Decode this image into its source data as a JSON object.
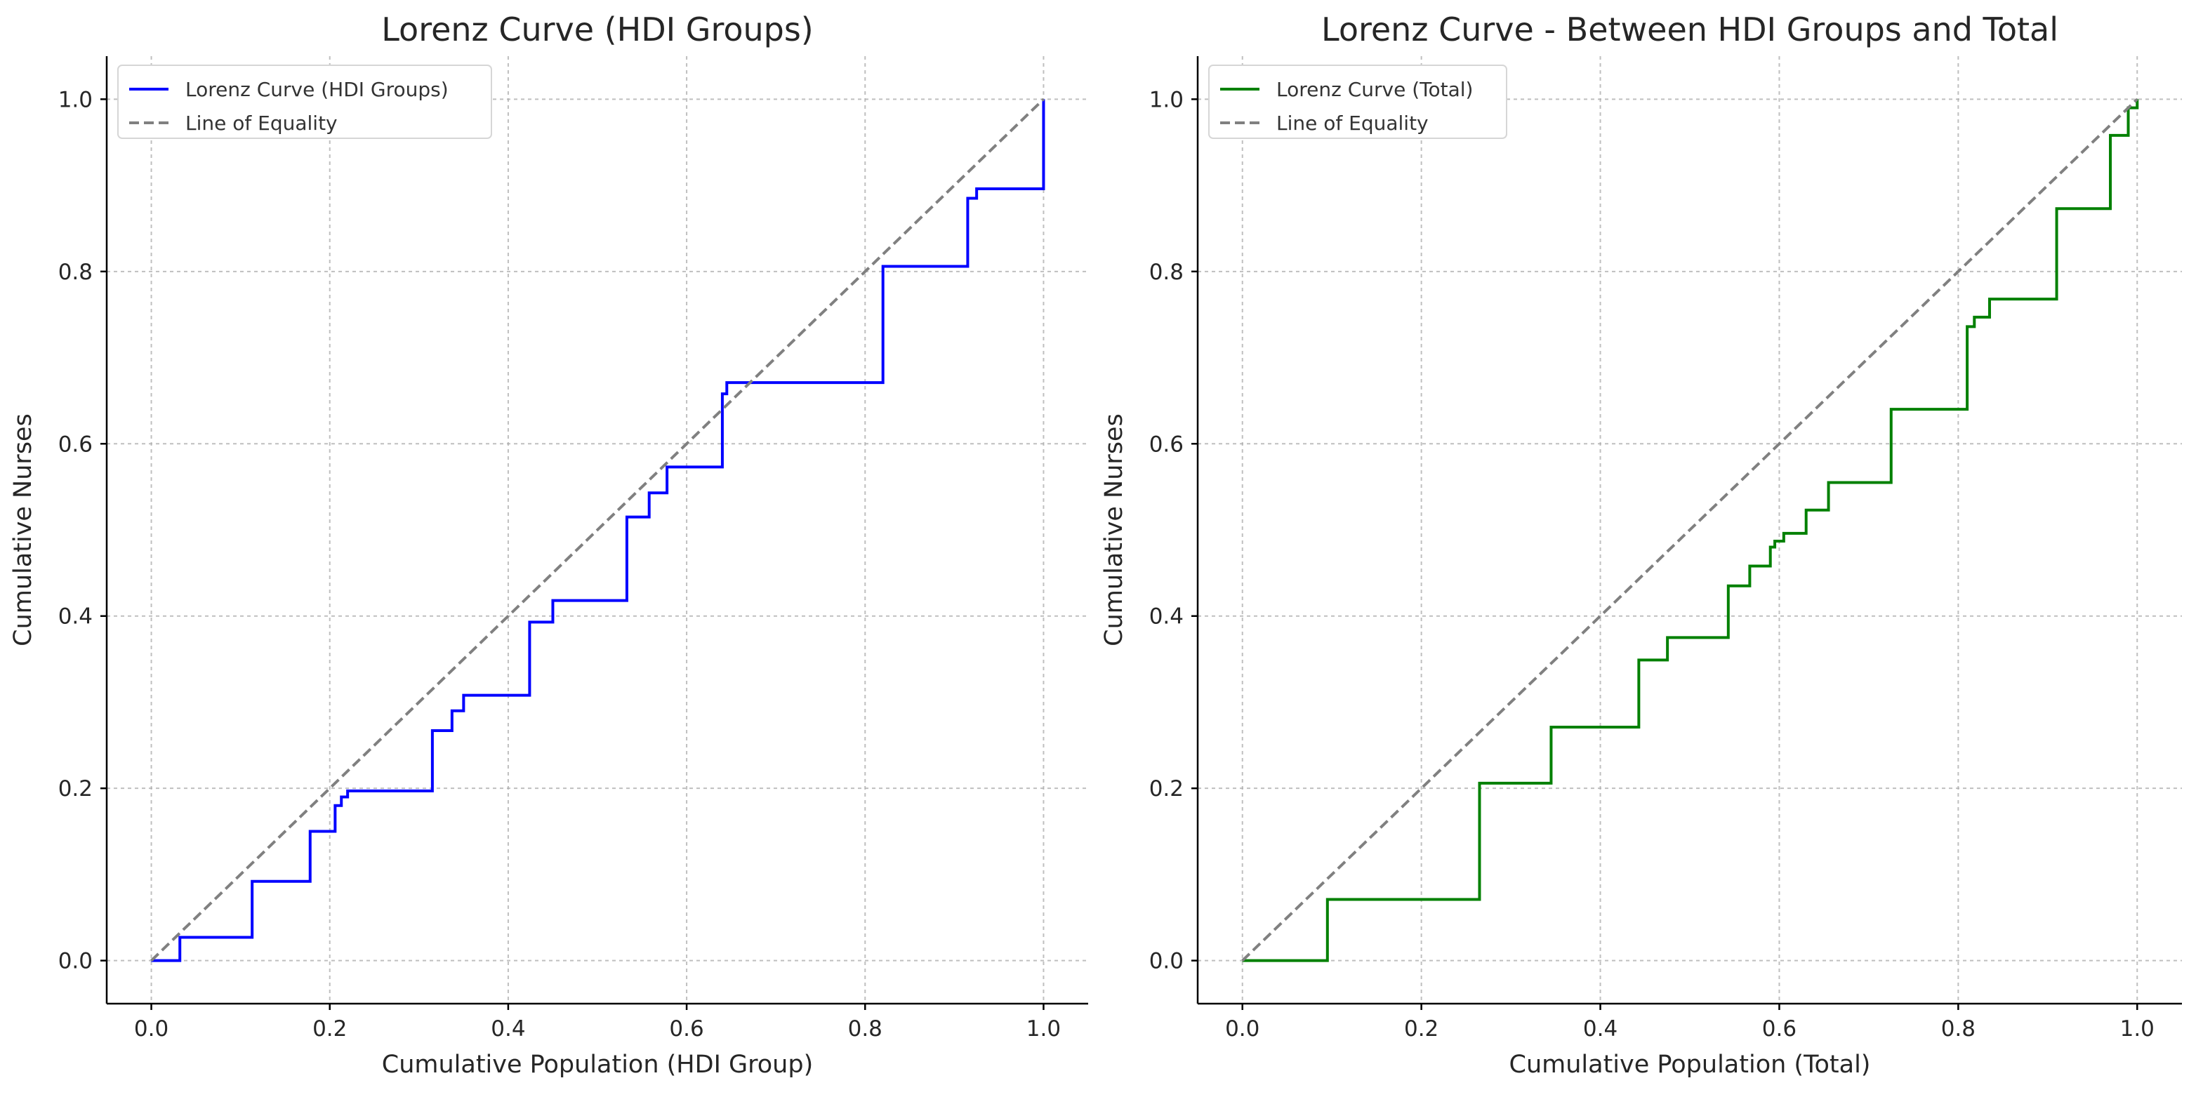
{
  "chart_data": [
    {
      "type": "line",
      "title": "Lorenz Curve (HDI Groups)",
      "xlabel": "Cumulative Population (HDI Group)",
      "ylabel": "Cumulative Nurses",
      "xlim": [
        -0.05,
        1.05
      ],
      "ylim": [
        -0.05,
        1.05
      ],
      "xticks": [
        0.0,
        0.2,
        0.4,
        0.6,
        0.8,
        1.0
      ],
      "yticks": [
        0.0,
        0.2,
        0.4,
        0.6,
        0.8,
        1.0
      ],
      "tick_labels": [
        "0.0",
        "0.2",
        "0.4",
        "0.6",
        "0.8",
        "1.0"
      ],
      "grid": true,
      "legend_position": "top-left",
      "series": [
        {
          "name": "Lorenz Curve (HDI Groups)",
          "style": "step",
          "color": "#0000ff",
          "x": [
            0.0,
            0.032,
            0.113,
            0.178,
            0.206,
            0.213,
            0.22,
            0.315,
            0.337,
            0.35,
            0.424,
            0.45,
            0.533,
            0.558,
            0.578,
            0.64,
            0.645,
            0.82,
            0.915,
            0.925,
            1.0
          ],
          "y": [
            0.0,
            0.027,
            0.092,
            0.15,
            0.18,
            0.19,
            0.197,
            0.267,
            0.29,
            0.308,
            0.393,
            0.418,
            0.515,
            0.543,
            0.573,
            0.658,
            0.671,
            0.806,
            0.885,
            0.896,
            1.0
          ]
        },
        {
          "name": "Line of Equality",
          "style": "dashed",
          "color": "#808080",
          "x": [
            0.0,
            1.0
          ],
          "y": [
            0.0,
            1.0
          ]
        }
      ]
    },
    {
      "type": "line",
      "title": "Lorenz Curve - Between HDI Groups and Total",
      "xlabel": "Cumulative Population (Total)",
      "ylabel": "Cumulative Nurses",
      "xlim": [
        -0.05,
        1.05
      ],
      "ylim": [
        -0.05,
        1.05
      ],
      "xticks": [
        0.0,
        0.2,
        0.4,
        0.6,
        0.8,
        1.0
      ],
      "yticks": [
        0.0,
        0.2,
        0.4,
        0.6,
        0.8,
        1.0
      ],
      "tick_labels": [
        "0.0",
        "0.2",
        "0.4",
        "0.6",
        "0.8",
        "1.0"
      ],
      "grid": true,
      "legend_position": "top-left",
      "series": [
        {
          "name": "Lorenz Curve (Total)",
          "style": "step",
          "color": "#008000",
          "x": [
            0.0,
            0.095,
            0.265,
            0.345,
            0.443,
            0.475,
            0.543,
            0.567,
            0.59,
            0.595,
            0.605,
            0.63,
            0.655,
            0.725,
            0.81,
            0.818,
            0.835,
            0.91,
            0.97,
            0.99,
            1.0
          ],
          "y": [
            0.0,
            0.071,
            0.206,
            0.271,
            0.349,
            0.375,
            0.435,
            0.458,
            0.48,
            0.487,
            0.496,
            0.523,
            0.555,
            0.64,
            0.736,
            0.747,
            0.768,
            0.873,
            0.958,
            0.99,
            1.0
          ]
        },
        {
          "name": "Line of Equality",
          "style": "dashed",
          "color": "#808080",
          "x": [
            0.0,
            1.0
          ],
          "y": [
            0.0,
            1.0
          ]
        }
      ]
    }
  ]
}
